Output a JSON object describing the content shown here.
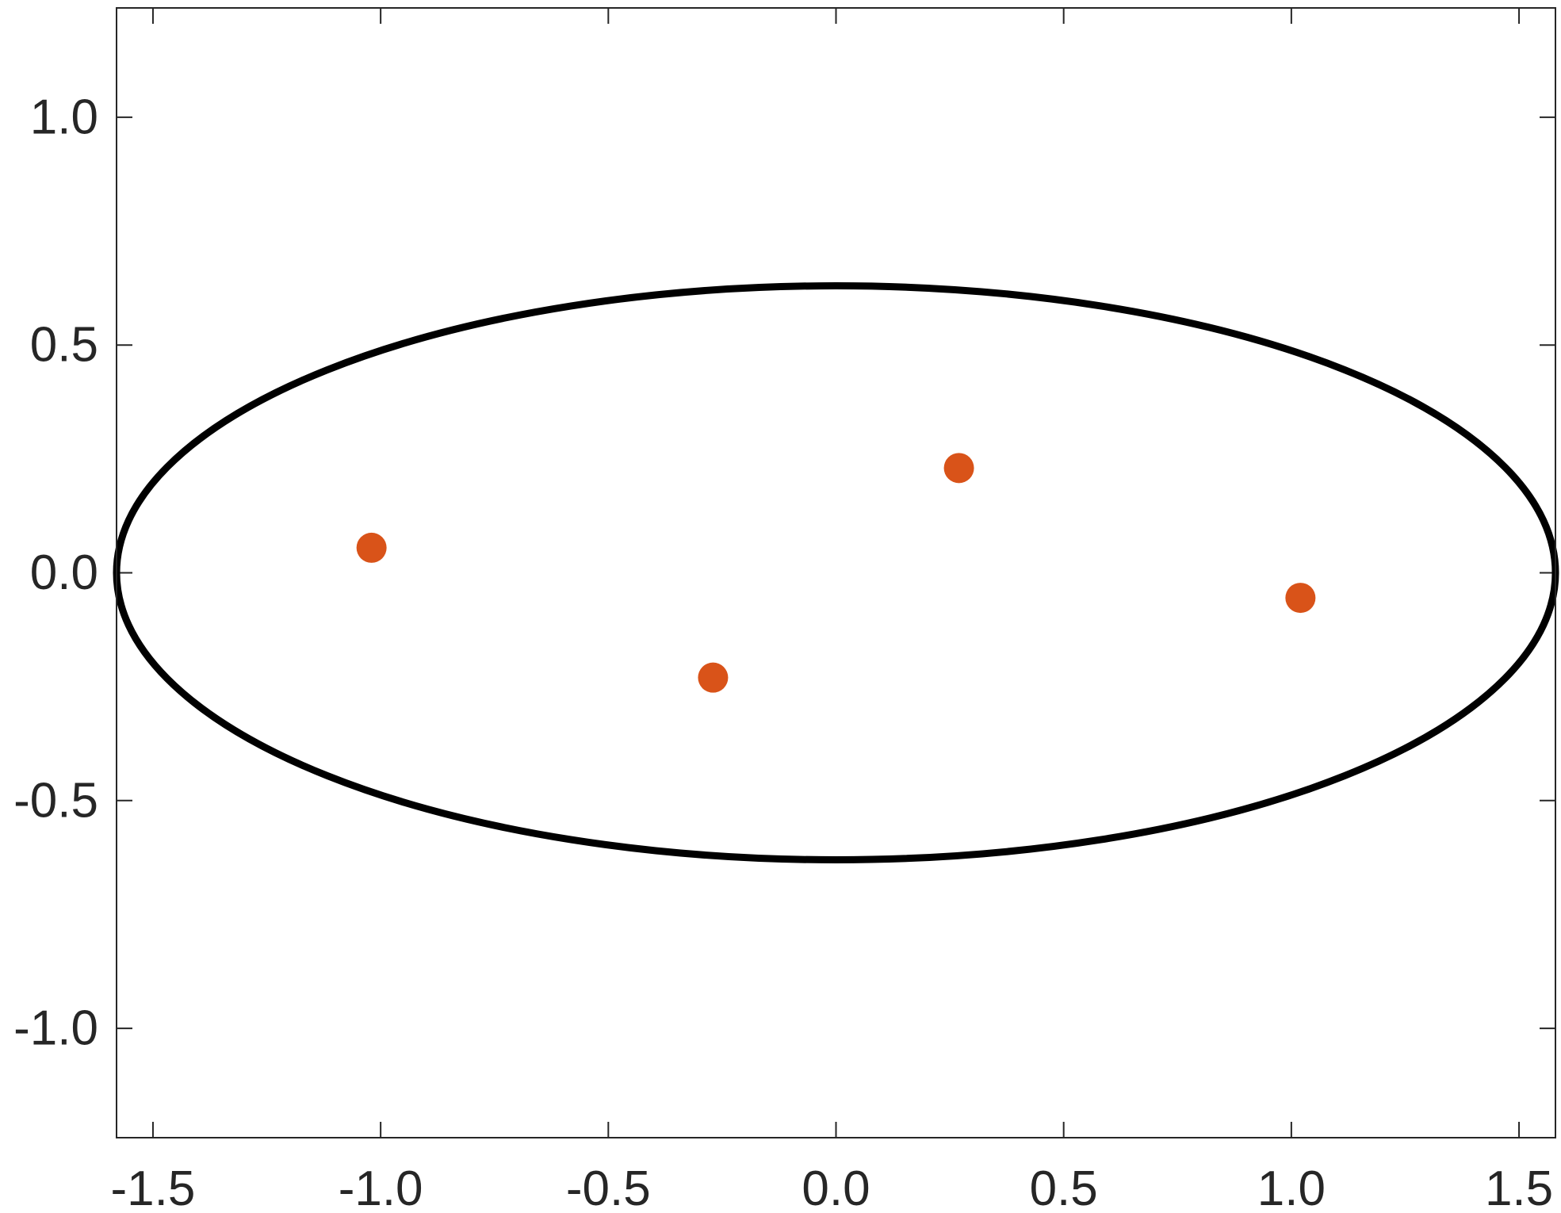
{
  "chart_data": {
    "type": "scatter",
    "title": "",
    "xlabel": "",
    "ylabel": "",
    "xlim": [
      -1.58,
      1.58
    ],
    "ylim": [
      -1.24,
      1.24
    ],
    "grid": false,
    "box": true,
    "x_ticks": [
      -1.5,
      -1.0,
      -0.5,
      0.0,
      0.5,
      1.0,
      1.5
    ],
    "x_tick_labels": [
      "-1.5",
      "-1.0",
      "-0.5",
      "0.0",
      "0.5",
      "1.0",
      "1.5"
    ],
    "y_ticks": [
      -1.0,
      -0.5,
      0.0,
      0.5,
      1.0
    ],
    "y_tick_labels": [
      "-1.0",
      "-0.5",
      "0.0",
      "0.5",
      "1.0"
    ],
    "ellipse": {
      "center": [
        0.0,
        0.0
      ],
      "semi_axis_x": 1.58,
      "semi_axis_y": 0.63,
      "color": "#000000"
    },
    "points": {
      "x": [
        -1.02,
        -0.27,
        0.27,
        1.02
      ],
      "y": [
        0.055,
        -0.23,
        0.23,
        -0.055
      ],
      "color": "#D95319"
    }
  }
}
